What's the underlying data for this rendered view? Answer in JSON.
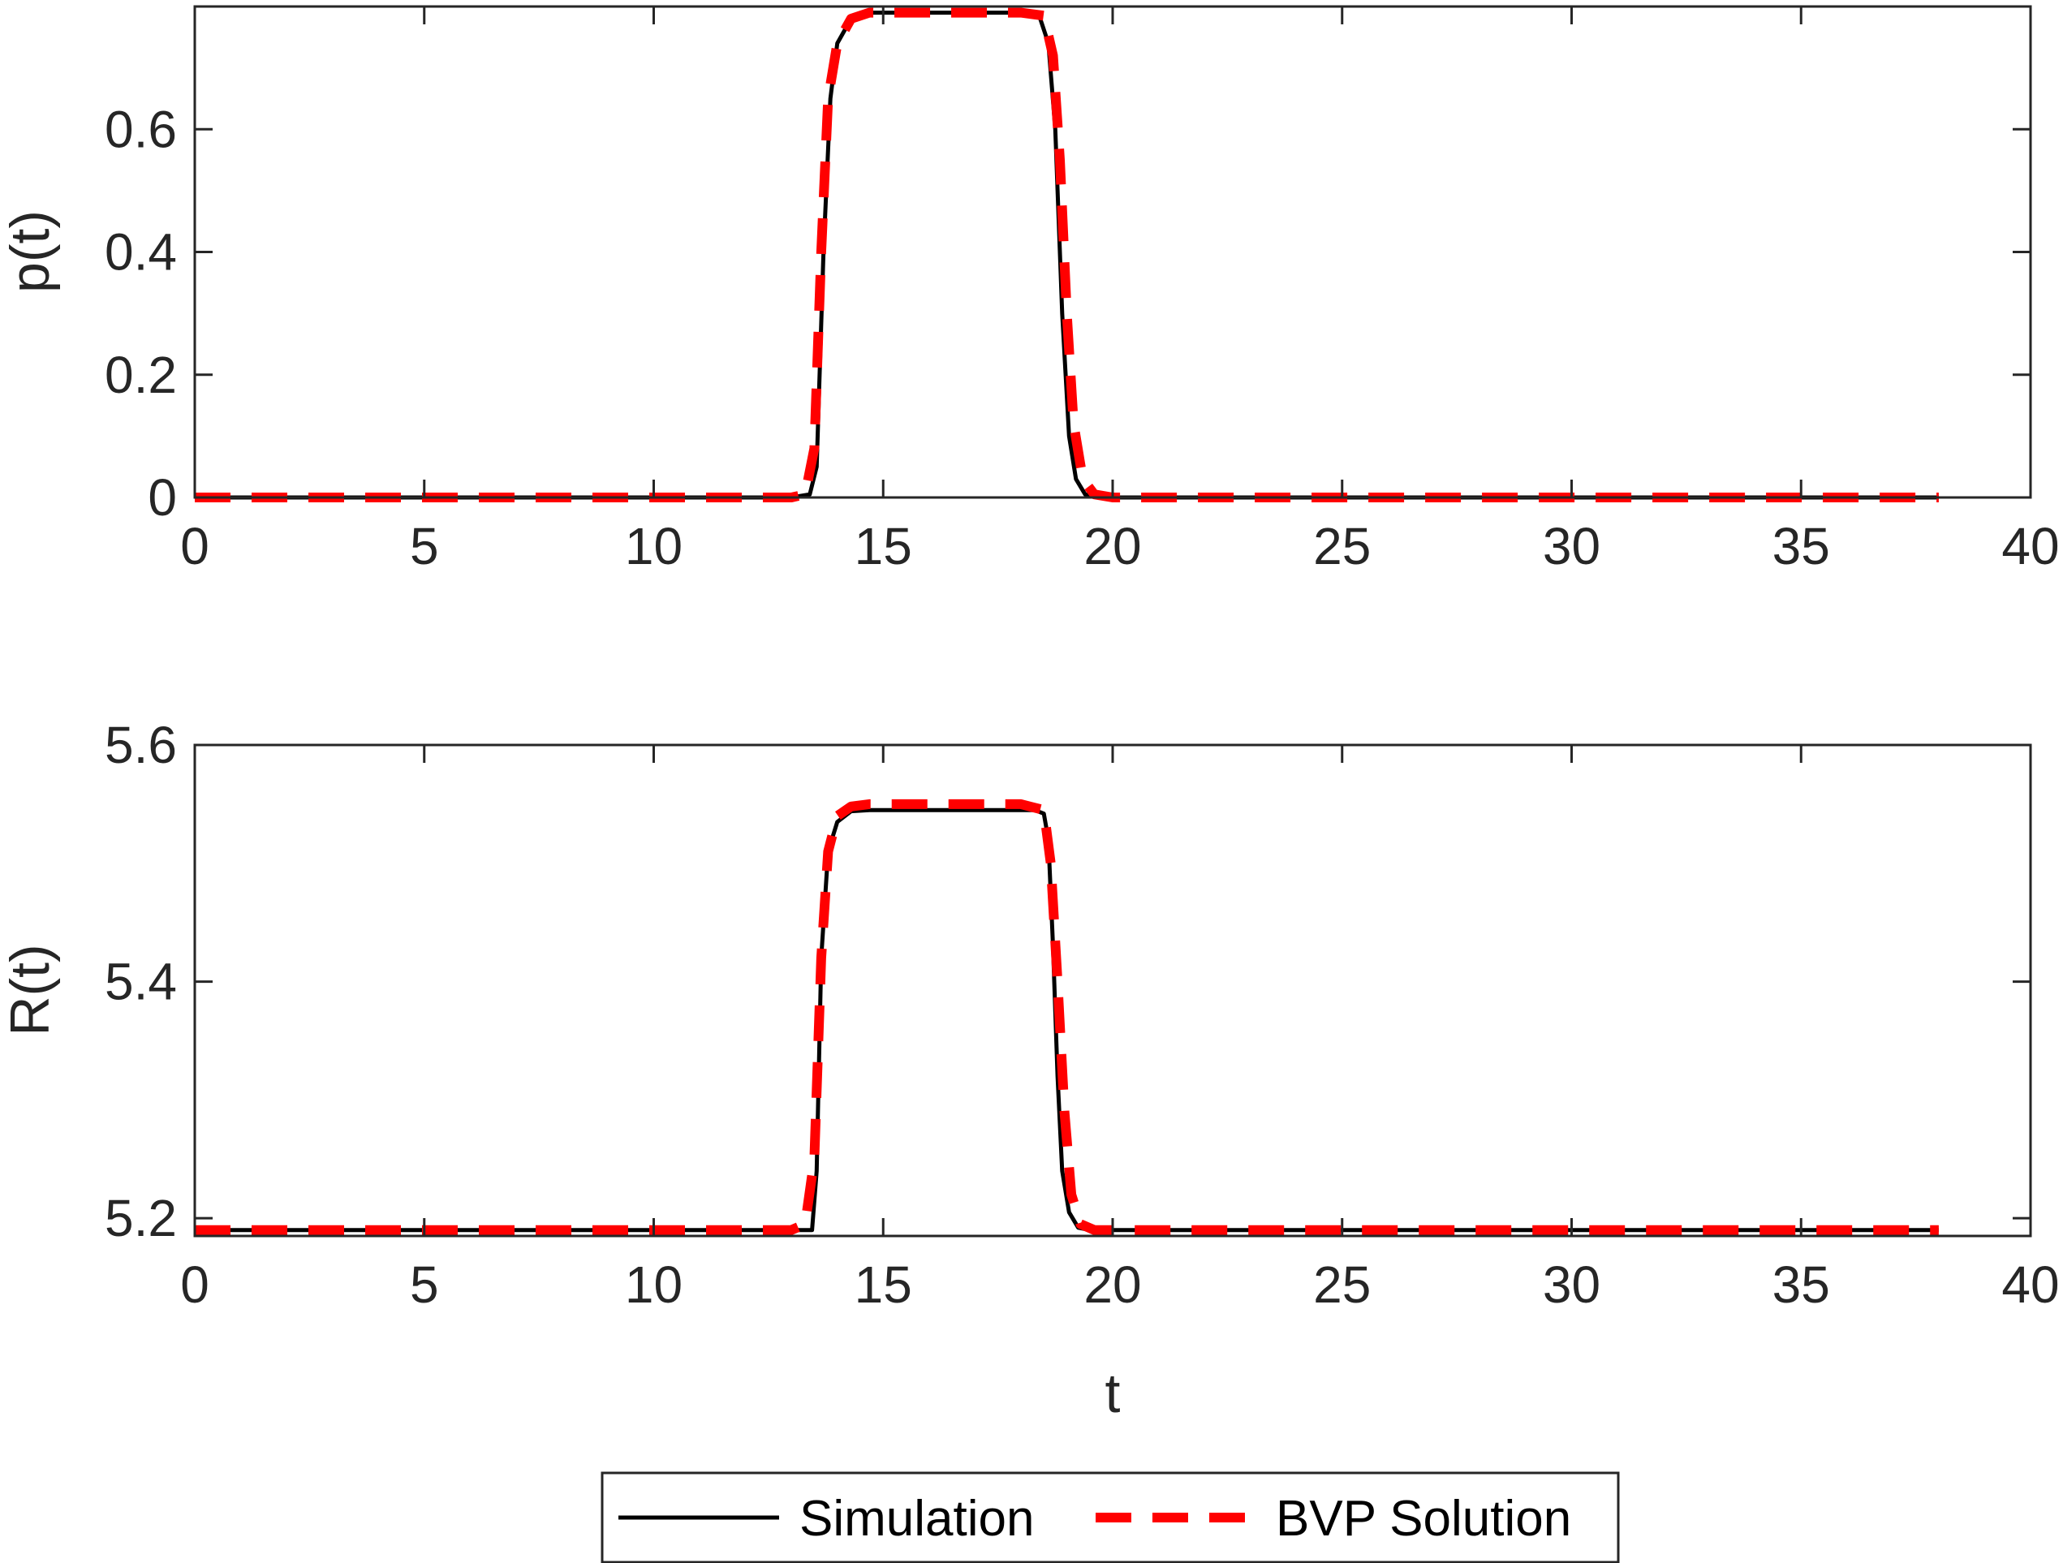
{
  "chart_data": [
    {
      "type": "line",
      "title": "",
      "xlabel": "",
      "ylabel": "p(t)",
      "xlim": [
        0,
        40
      ],
      "ylim": [
        0,
        0.8
      ],
      "x_ticks": [
        0,
        5,
        10,
        15,
        20,
        25,
        30,
        35,
        40
      ],
      "x_tick_labels": [
        "0",
        "5",
        "10",
        "15",
        "20",
        "25",
        "30",
        "35",
        "40"
      ],
      "y_ticks": [
        0,
        0.2,
        0.4,
        0.6
      ],
      "y_tick_labels": [
        "0",
        "0.2",
        "0.4",
        "0.6"
      ],
      "grid": false,
      "series": [
        {
          "name": "Simulation",
          "color": "#000000",
          "style": "solid",
          "x": [
            0,
            13.0,
            13.4,
            13.55,
            13.7,
            13.85,
            14.0,
            14.3,
            14.7,
            15.0,
            16.0,
            17.0,
            18.0,
            18.4,
            18.6,
            18.75,
            18.9,
            19.05,
            19.2,
            19.4,
            19.7,
            20.0,
            25.0,
            30.0,
            35.0,
            38.0
          ],
          "y": [
            0,
            0,
            0.005,
            0.05,
            0.4,
            0.65,
            0.74,
            0.78,
            0.79,
            0.79,
            0.79,
            0.79,
            0.79,
            0.785,
            0.74,
            0.6,
            0.3,
            0.1,
            0.03,
            0.005,
            0,
            0,
            0,
            0,
            0,
            0
          ]
        },
        {
          "name": "BVP Solution",
          "color": "#ff0000",
          "style": "dashed",
          "x": [
            0,
            13.0,
            13.3,
            13.5,
            13.65,
            13.8,
            14.0,
            14.3,
            14.7,
            15.0,
            16.0,
            17.0,
            18.0,
            18.5,
            18.7,
            18.85,
            19.0,
            19.15,
            19.35,
            19.6,
            20.0,
            25.0,
            30.0,
            35.0,
            38.0
          ],
          "y": [
            0,
            0,
            0.005,
            0.08,
            0.4,
            0.65,
            0.74,
            0.78,
            0.79,
            0.79,
            0.79,
            0.79,
            0.79,
            0.785,
            0.72,
            0.55,
            0.3,
            0.12,
            0.03,
            0.005,
            0,
            0,
            0,
            0,
            0
          ]
        }
      ]
    },
    {
      "type": "line",
      "title": "",
      "xlabel": "t",
      "ylabel": "R(t)",
      "xlim": [
        0,
        40
      ],
      "ylim": [
        5.185,
        5.6
      ],
      "x_ticks": [
        0,
        5,
        10,
        15,
        20,
        25,
        30,
        35,
        40
      ],
      "x_tick_labels": [
        "0",
        "5",
        "10",
        "15",
        "20",
        "25",
        "30",
        "35",
        "40"
      ],
      "y_ticks": [
        5.2,
        5.4,
        5.6
      ],
      "y_tick_labels": [
        "5.2",
        "5.4",
        "5.6"
      ],
      "grid": false,
      "series": [
        {
          "name": "Simulation",
          "color": "#000000",
          "style": "solid",
          "x": [
            0,
            13.0,
            13.45,
            13.55,
            13.65,
            13.8,
            14.0,
            14.3,
            14.7,
            15.0,
            16.0,
            17.0,
            18.0,
            18.3,
            18.5,
            18.6,
            18.7,
            18.8,
            18.9,
            19.05,
            19.25,
            19.5,
            20.0,
            25.0,
            30.0,
            35.0,
            38.0
          ],
          "y": [
            5.19,
            5.19,
            5.19,
            5.24,
            5.42,
            5.51,
            5.535,
            5.544,
            5.545,
            5.545,
            5.545,
            5.545,
            5.545,
            5.545,
            5.542,
            5.52,
            5.43,
            5.32,
            5.24,
            5.205,
            5.192,
            5.19,
            5.19,
            5.19,
            5.19,
            5.19,
            5.19
          ]
        },
        {
          "name": "BVP Solution",
          "color": "#ff0000",
          "style": "dashed",
          "x": [
            0,
            13.0,
            13.3,
            13.5,
            13.65,
            13.8,
            14.0,
            14.3,
            14.7,
            15.0,
            16.0,
            17.0,
            18.0,
            18.5,
            18.65,
            18.8,
            18.95,
            19.1,
            19.3,
            19.6,
            20.0,
            25.0,
            30.0,
            35.0,
            38.0
          ],
          "y": [
            5.19,
            5.19,
            5.195,
            5.25,
            5.42,
            5.51,
            5.54,
            5.548,
            5.55,
            5.55,
            5.55,
            5.55,
            5.55,
            5.545,
            5.5,
            5.4,
            5.29,
            5.22,
            5.195,
            5.19,
            5.19,
            5.19,
            5.19,
            5.19,
            5.19
          ]
        }
      ]
    }
  ],
  "legend": {
    "position": "bottom-center",
    "entries": [
      {
        "label": "Simulation",
        "color": "#000000",
        "style": "solid"
      },
      {
        "label": "BVP Solution",
        "color": "#ff0000",
        "style": "dashed"
      }
    ]
  }
}
